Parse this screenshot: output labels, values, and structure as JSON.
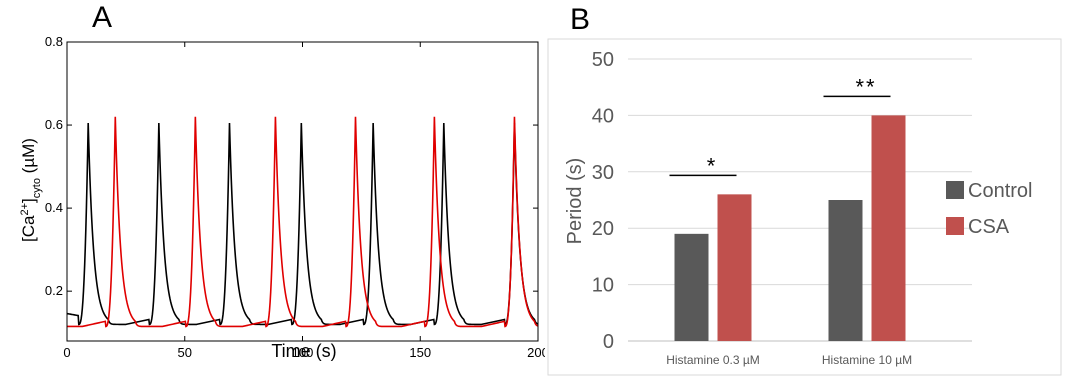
{
  "panels": {
    "a_label": "A",
    "b_label": "B"
  },
  "chart_data": [
    {
      "type": "line",
      "panel": "A",
      "xlabel": "Time (s)",
      "ylabel": "[Ca2+]cyto (µM)",
      "ylabel_parts": {
        "base": "[Ca",
        "sup": "2+",
        "close": "]",
        "sub": "cyto",
        "unit": " (µM)"
      },
      "xlim": [
        0,
        200
      ],
      "ylim": [
        0.08,
        0.8
      ],
      "x_ticks": [
        0,
        50,
        100,
        150,
        200
      ],
      "x_tick_labels": [
        "0",
        "50",
        "100",
        "150",
        "200"
      ],
      "y_ticks": [
        0.2,
        0.4,
        0.6,
        0.8
      ],
      "y_tick_labels": [
        "0.2",
        "0.4",
        "0.6",
        "0.8"
      ],
      "grid": false,
      "series": [
        {
          "color": "#000000",
          "baseline": 0.12,
          "peak": 0.605,
          "initial_value": 0.14,
          "peak_times": [
            9,
            39,
            69,
            99.5,
            130,
            160,
            190
          ]
        },
        {
          "color": "#e00000",
          "baseline": 0.115,
          "peak": 0.62,
          "initial_value": 0.115,
          "peak_times": [
            20.5,
            54.5,
            88.5,
            122.5,
            156,
            190
          ]
        }
      ]
    },
    {
      "type": "bar",
      "panel": "B",
      "categories": [
        "Histamine 0.3 µM",
        "Histamine 10 µM"
      ],
      "series": [
        {
          "name": "Control",
          "color": "#595959",
          "values": [
            19,
            25
          ]
        },
        {
          "name": "CSA",
          "color": "#c0504d",
          "values": [
            26,
            40
          ]
        }
      ],
      "ylabel": "Period (s)",
      "ylim": [
        0,
        50
      ],
      "y_ticks": [
        0,
        10,
        20,
        30,
        40,
        50
      ],
      "y_tick_labels": [
        "0",
        "10",
        "20",
        "30",
        "40",
        "50"
      ],
      "grid": true,
      "legend_position": "right",
      "significance": [
        "*",
        "**"
      ]
    }
  ]
}
